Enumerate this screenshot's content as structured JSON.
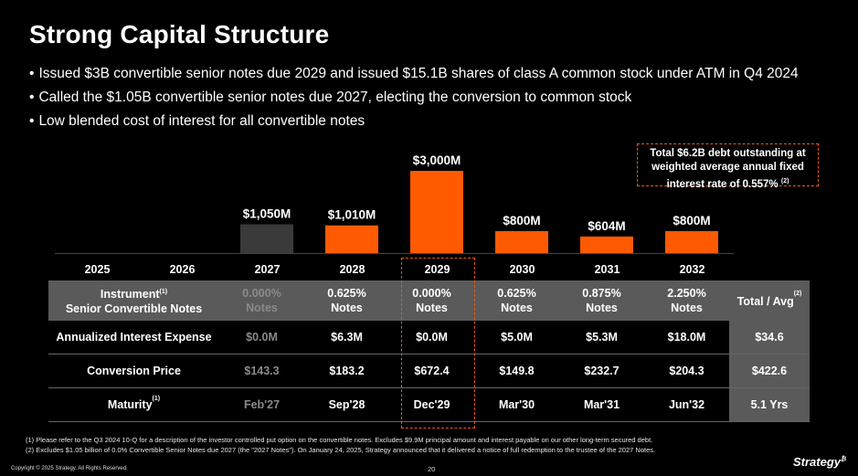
{
  "title": "Strong Capital Structure",
  "bullets": [
    "Issued $3B convertible senior notes due 2029 and issued $15.1B shares of class A common stock under ATM in Q4 2024",
    "Called the $1.05B convertible senior notes due 2027, electing the conversion to common stock",
    "Low blended cost of interest for all convertible notes"
  ],
  "callout": {
    "line1": "Total $6.2B debt outstanding at",
    "line2": "weighted average annual fixed",
    "line3": "interest rate of 0.557%",
    "sup": "(2)"
  },
  "colors": {
    "orange": "#ff5a00",
    "gray_bar": "#3a3a3a",
    "table_gray": "#5a5a5a",
    "dashed": "#e85a1a"
  },
  "chart_data": {
    "type": "bar",
    "categories": [
      "2025",
      "2026",
      "2027",
      "2028",
      "2029",
      "2030",
      "2031",
      "2032"
    ],
    "values": [
      0,
      0,
      1050,
      1010,
      3000,
      800,
      604,
      800
    ],
    "data_labels": [
      "",
      "",
      "$1,050M",
      "$1,010M",
      "$3,000M",
      "$800M",
      "$604M",
      "$800M"
    ],
    "bar_colors": [
      "",
      "",
      "#3a3a3a",
      "#ff5a00",
      "#ff5a00",
      "#ff5a00",
      "#ff5a00",
      "#ff5a00"
    ],
    "title": "",
    "xlabel": "",
    "ylabel": "",
    "ylim": [
      0,
      3000
    ],
    "grid": false,
    "highlighted_category": "2029"
  },
  "table": {
    "header_label_line1": "Instrument",
    "header_label_sup": "(1)",
    "header_label_line2": "Senior Convertible Notes",
    "total_header": "Total / Avg",
    "total_header_sup": "(2)",
    "columns": [
      {
        "rate": "0.000%",
        "type": "Notes",
        "dim": true
      },
      {
        "rate": "0.625%",
        "type": "Notes",
        "dim": false
      },
      {
        "rate": "0.000%",
        "type": "Notes",
        "dim": false
      },
      {
        "rate": "0.625%",
        "type": "Notes",
        "dim": false
      },
      {
        "rate": "0.875%",
        "type": "Notes",
        "dim": false
      },
      {
        "rate": "2.250%",
        "type": "Notes",
        "dim": false
      }
    ],
    "rows": [
      {
        "label": "Annualized Interest Expense",
        "sup": "",
        "values": [
          "$0.0M",
          "$6.3M",
          "$0.0M",
          "$5.0M",
          "$5.3M",
          "$18.0M"
        ],
        "total": "$34.6"
      },
      {
        "label": "Conversion Price",
        "sup": "",
        "values": [
          "$143.3",
          "$183.2",
          "$672.4",
          "$149.8",
          "$232.7",
          "$204.3"
        ],
        "total": "$422.6"
      },
      {
        "label": "Maturity",
        "sup": "(1)",
        "values": [
          "Feb'27",
          "Sep'28",
          "Dec'29",
          "Mar'30",
          "Mar'31",
          "Jun'32"
        ],
        "total": "5.1 Yrs"
      }
    ]
  },
  "footnotes": [
    "(1)   Please refer to the Q3 2024 10-Q for a description of the investor controlled put option on the convertible notes. Excludes $9.9M principal amount and interest payable on our other long-term secured debt.",
    "(2)   Excludes $1.05 billion of 0.0% Convertible Senior Notes due 2027 (the \"2027 Notes\"). On January 24, 2025, Strategy announced that it delivered a notice of full redemption to the trustee of the 2027 Notes."
  ],
  "copyright": "Copyright © 2025 Strategy. All Rights Reserved.",
  "page_number": "20",
  "logo": {
    "text": "Strategy",
    "mark": "₿"
  }
}
